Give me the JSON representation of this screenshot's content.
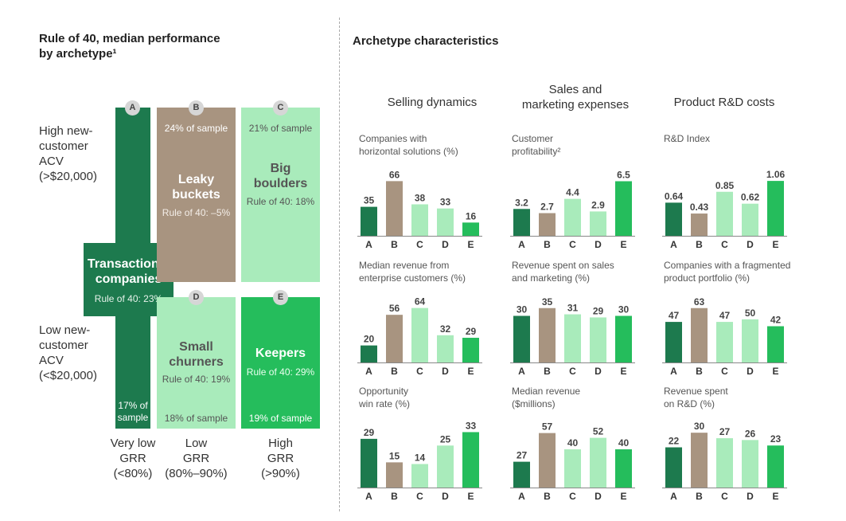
{
  "left": {
    "title_line1": "Rule of 40, median performance",
    "title_line2": "by archetype¹",
    "rows": [
      [
        "High new-",
        "customer",
        "ACV",
        "(>$20,000)"
      ],
      [
        "Low new-",
        "customer",
        "ACV",
        "(<$20,000)"
      ]
    ],
    "cols": [
      [
        "Very low",
        "GRR",
        "(<80%)"
      ],
      [
        "Low",
        "GRR",
        "(80%–90%)"
      ],
      [
        "High",
        "GRR",
        "(>90%)"
      ]
    ],
    "archetypes": {
      "A": {
        "badge": "A",
        "name1": "Transactional",
        "name2": "companies",
        "rule": "Rule of 40: 23%",
        "sample1": "17% of",
        "sample2": "sample"
      },
      "B": {
        "badge": "B",
        "name1": "Leaky",
        "name2": "buckets",
        "rule": "Rule of 40: –5%",
        "sample": "24% of sample"
      },
      "C": {
        "badge": "C",
        "name1": "Big",
        "name2": "boulders",
        "rule": "Rule of 40: 18%",
        "sample": "21% of sample"
      },
      "D": {
        "badge": "D",
        "name1": "Small",
        "name2": "churners",
        "rule": "Rule of 40: 19%",
        "sample": "18% of sample"
      },
      "E": {
        "badge": "E",
        "name": "Keepers",
        "rule": "Rule of 40: 29%",
        "sample": "19% of sample"
      }
    }
  },
  "right": {
    "title": "Archetype characteristics",
    "columns": [
      [
        "Selling dynamics"
      ],
      [
        "Sales and",
        "marketing expenses"
      ],
      [
        "Product R&D costs"
      ]
    ]
  },
  "colors": {
    "A": "#1d7a4e",
    "B": "#a89480",
    "C": "#a9ebbb",
    "D": "#a9ebbb",
    "E": "#25bd5c"
  },
  "chart_data": [
    {
      "type": "bar",
      "title": [
        "Companies with",
        "horizontal solutions (%)"
      ],
      "categories": [
        "A",
        "B",
        "C",
        "D",
        "E"
      ],
      "values": [
        35,
        66,
        38,
        33,
        16
      ],
      "labels": [
        "35",
        "66",
        "38",
        "33",
        "16"
      ],
      "ylim": [
        0,
        75
      ]
    },
    {
      "type": "bar",
      "title": [
        "Customer",
        "profitability²"
      ],
      "categories": [
        "A",
        "B",
        "C",
        "D",
        "E"
      ],
      "values": [
        3.2,
        2.7,
        4.4,
        2.9,
        6.5
      ],
      "labels": [
        "3.2",
        "2.7",
        "4.4",
        "2.9",
        "6.5"
      ],
      "ylim": [
        0,
        7.4
      ]
    },
    {
      "type": "bar",
      "title": [
        "R&D Index"
      ],
      "categories": [
        "A",
        "B",
        "C",
        "D",
        "E"
      ],
      "values": [
        0.64,
        0.43,
        0.85,
        0.62,
        1.06
      ],
      "labels": [
        "0.64",
        "0.43",
        "0.85",
        "0.62",
        "1.06"
      ],
      "ylim": [
        0,
        1.2
      ]
    },
    {
      "type": "bar",
      "title": [
        "Median revenue from",
        "enterprise customers (%)"
      ],
      "categories": [
        "A",
        "B",
        "C",
        "D",
        "E"
      ],
      "values": [
        20,
        56,
        64,
        32,
        29
      ],
      "labels": [
        "20",
        "56",
        "64",
        "32",
        "29"
      ],
      "ylim": [
        0,
        73
      ]
    },
    {
      "type": "bar",
      "title": [
        "Revenue spent on sales",
        "and marketing (%)"
      ],
      "categories": [
        "A",
        "B",
        "C",
        "D",
        "E"
      ],
      "values": [
        30,
        35,
        31,
        29,
        30
      ],
      "labels": [
        "30",
        "35",
        "31",
        "29",
        "30"
      ],
      "ylim": [
        0,
        40
      ]
    },
    {
      "type": "bar",
      "title": [
        "Companies with a fragmented",
        "product portfolio (%)"
      ],
      "categories": [
        "A",
        "B",
        "C",
        "D",
        "E"
      ],
      "values": [
        47,
        63,
        47,
        50,
        42
      ],
      "labels": [
        "47",
        "63",
        "47",
        "50",
        "42"
      ],
      "ylim": [
        0,
        72
      ]
    },
    {
      "type": "bar",
      "title": [
        "Opportunity",
        "win rate (%)"
      ],
      "categories": [
        "A",
        "B",
        "C",
        "D",
        "E"
      ],
      "values": [
        29,
        15,
        14,
        25,
        33
      ],
      "labels": [
        "29",
        "15",
        "14",
        "25",
        "33"
      ],
      "ylim": [
        0,
        37
      ]
    },
    {
      "type": "bar",
      "title": [
        "Median revenue",
        "($millions)"
      ],
      "categories": [
        "A",
        "B",
        "C",
        "D",
        "E"
      ],
      "values": [
        27,
        57,
        40,
        52,
        40
      ],
      "labels": [
        "27",
        "57",
        "40",
        "52",
        "40"
      ],
      "ylim": [
        0,
        65
      ]
    },
    {
      "type": "bar",
      "title": [
        "Revenue spent",
        "on R&D (%)"
      ],
      "categories": [
        "A",
        "B",
        "C",
        "D",
        "E"
      ],
      "values": [
        22,
        30,
        27,
        26,
        23
      ],
      "labels": [
        "22",
        "30",
        "27",
        "26",
        "23"
      ],
      "ylim": [
        0,
        34
      ]
    }
  ]
}
